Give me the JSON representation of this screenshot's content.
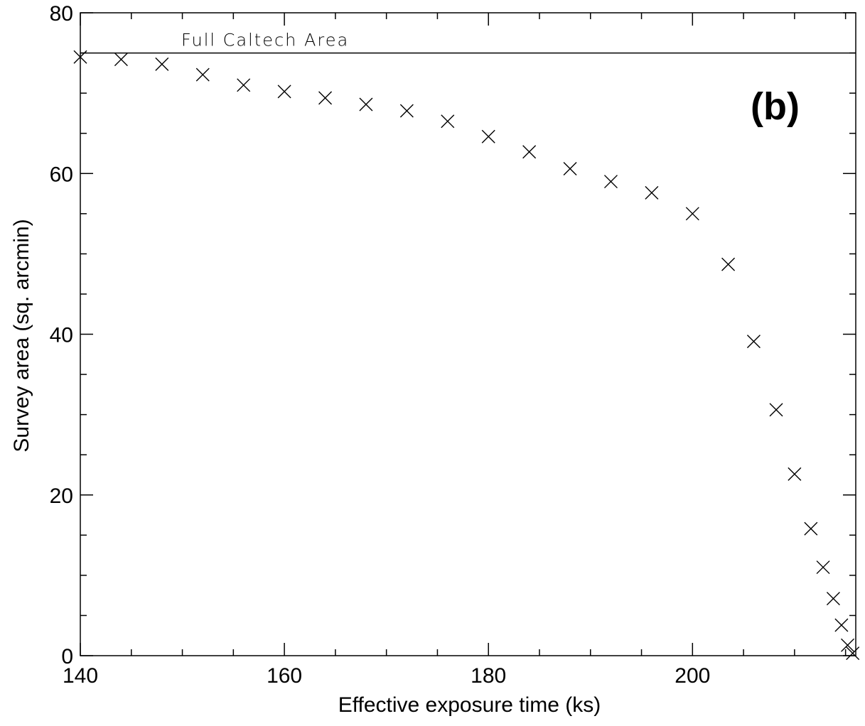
{
  "chart_data": {
    "type": "scatter",
    "title": "",
    "xlabel": "Effective exposure time (ks)",
    "ylabel": "Survey area (sq. arcmin)",
    "xlim": [
      140,
      216
    ],
    "ylim": [
      0,
      80
    ],
    "x_ticks": [
      140,
      160,
      180,
      200
    ],
    "y_ticks": [
      0,
      20,
      40,
      60,
      80
    ],
    "x_minor_step": 5,
    "y_minor_step": 5,
    "marker": "x",
    "grid": false,
    "panel_label": "(b)",
    "reference_line": {
      "y": 75,
      "label": "Full Caltech Area"
    },
    "points": [
      {
        "x": 140,
        "y": 74.5
      },
      {
        "x": 144,
        "y": 74.2
      },
      {
        "x": 148,
        "y": 73.6
      },
      {
        "x": 152,
        "y": 72.3
      },
      {
        "x": 156,
        "y": 71.0
      },
      {
        "x": 160,
        "y": 70.2
      },
      {
        "x": 164,
        "y": 69.4
      },
      {
        "x": 168,
        "y": 68.6
      },
      {
        "x": 172,
        "y": 67.8
      },
      {
        "x": 176,
        "y": 66.5
      },
      {
        "x": 180,
        "y": 64.6
      },
      {
        "x": 184,
        "y": 62.7
      },
      {
        "x": 188,
        "y": 60.6
      },
      {
        "x": 192,
        "y": 59.0
      },
      {
        "x": 196,
        "y": 57.6
      },
      {
        "x": 200,
        "y": 55.0
      },
      {
        "x": 203.5,
        "y": 48.7
      },
      {
        "x": 206,
        "y": 39.1
      },
      {
        "x": 208.2,
        "y": 30.6
      },
      {
        "x": 210,
        "y": 22.6
      },
      {
        "x": 211.6,
        "y": 15.8
      },
      {
        "x": 212.8,
        "y": 11.0
      },
      {
        "x": 213.8,
        "y": 7.1
      },
      {
        "x": 214.6,
        "y": 3.8
      },
      {
        "x": 215.2,
        "y": 1.3
      },
      {
        "x": 215.7,
        "y": 0.3
      }
    ]
  }
}
